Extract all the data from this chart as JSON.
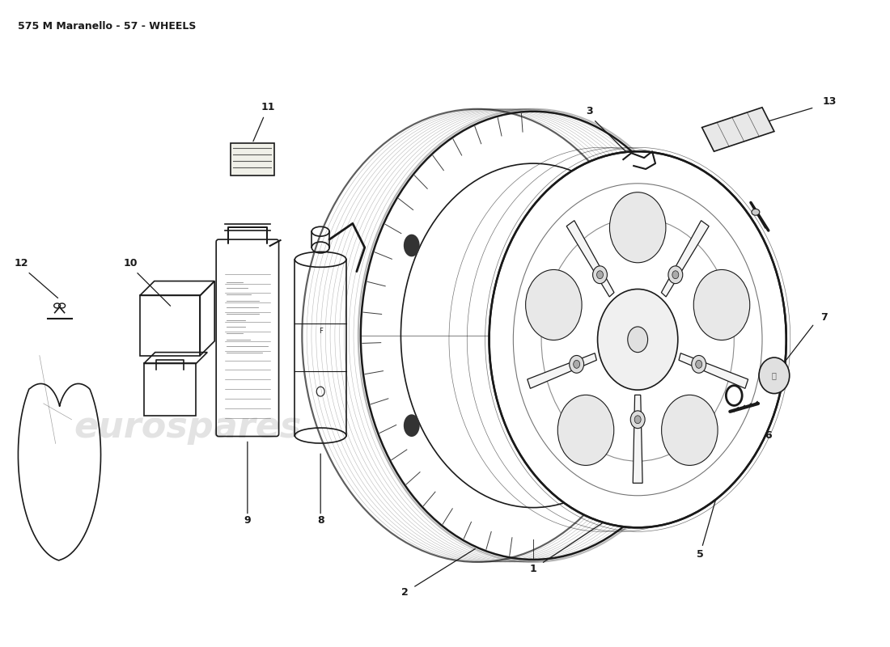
{
  "title": "575 M Maranello - 57 - WHEELS",
  "title_fontsize": 9,
  "background_color": "#ffffff",
  "watermark_text": "eurospares",
  "watermark_color": "#c8c8c8",
  "watermark_fontsize": 32,
  "line_color": "#1a1a1a",
  "line_width": 1.2,
  "label_fontsize": 9
}
